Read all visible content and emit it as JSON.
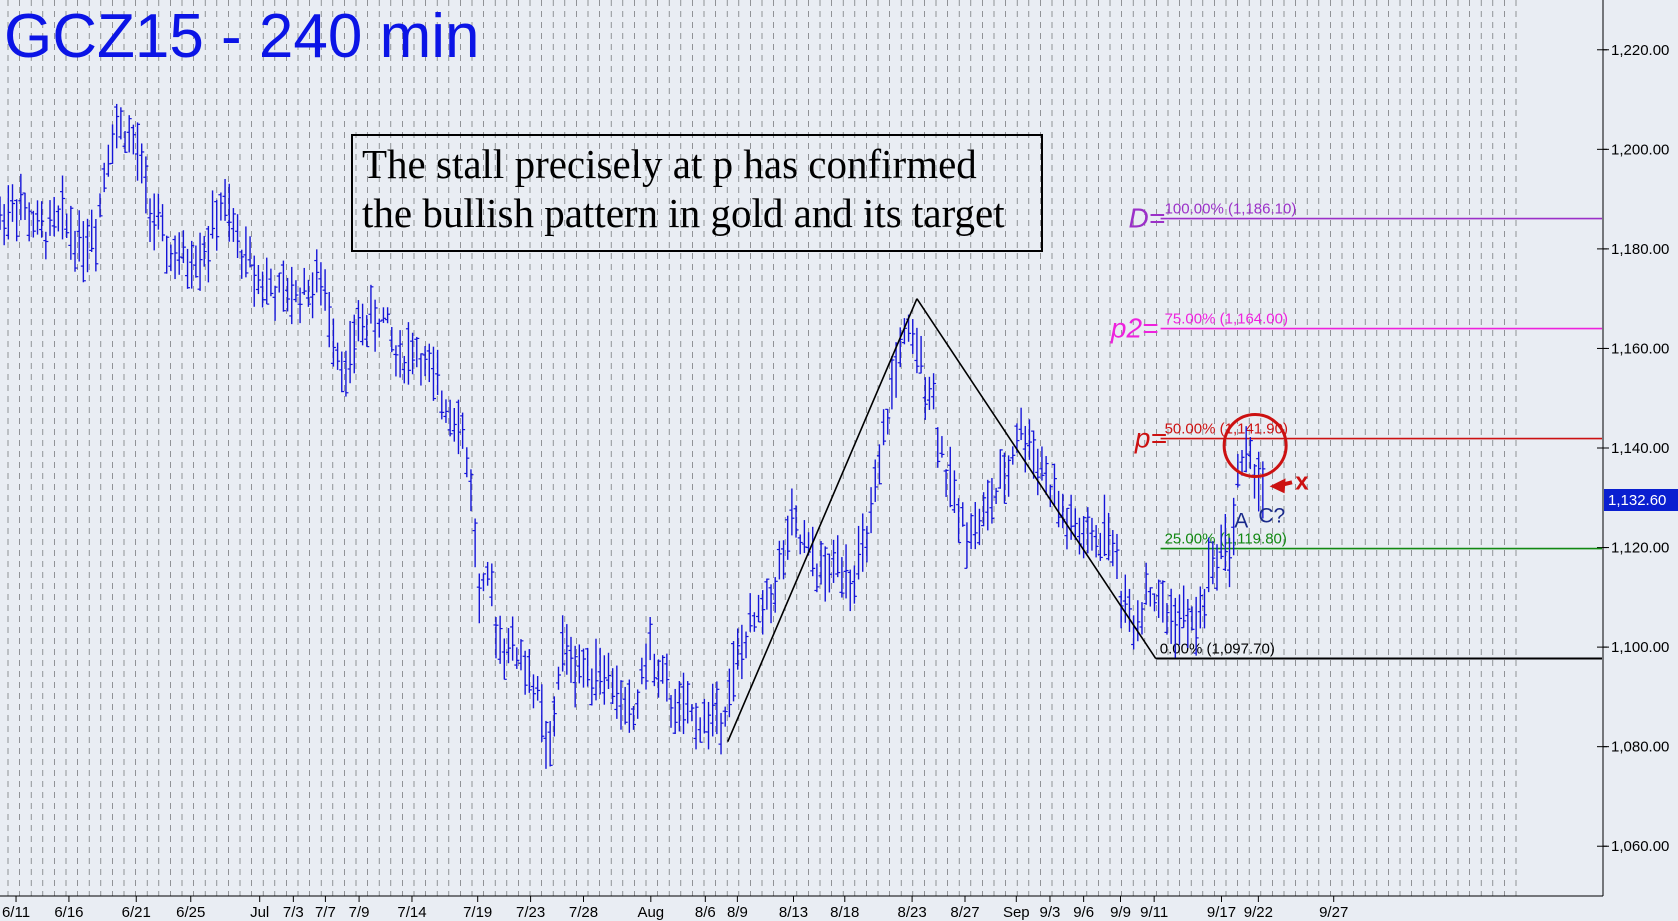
{
  "title": "GCZ15 - 240 min",
  "annotation": {
    "line1": "The stall precisely at p has confirmed",
    "line2": "the bullish pattern in gold and its target"
  },
  "current_price": "1,132.60",
  "colors": {
    "background": "#e9edf3",
    "bars": "#1515d8",
    "title": "#0b14e6",
    "D": "#9b30c8",
    "p2": "#ee22dd",
    "p": "#cc1111",
    "fib25": "#118811",
    "fib0": "#000000",
    "price_box": "#0a1fd0"
  },
  "chart_data": {
    "type": "ohlc",
    "title": "GCZ15 - 240 min",
    "ylim": [
      1050,
      1230
    ],
    "yticks": [
      {
        "value": 1060,
        "label": "1,060.00"
      },
      {
        "value": 1080,
        "label": "1,080.00"
      },
      {
        "value": 1100,
        "label": "1,100.00"
      },
      {
        "value": 1120,
        "label": "1,120.00"
      },
      {
        "value": 1140,
        "label": "1,140.00"
      },
      {
        "value": 1160,
        "label": "1,160.00"
      },
      {
        "value": 1180,
        "label": "1,180.00"
      },
      {
        "value": 1200,
        "label": "1,200.00"
      },
      {
        "value": 1220,
        "label": "1,220.00"
      }
    ],
    "xlim": [
      0,
      100
    ],
    "xticks": [
      {
        "x": 1,
        "label": "6/11"
      },
      {
        "x": 4.3,
        "label": "6/16"
      },
      {
        "x": 8.5,
        "label": "6/21"
      },
      {
        "x": 11.9,
        "label": "6/25"
      },
      {
        "x": 16.2,
        "label": "Jul"
      },
      {
        "x": 18.3,
        "label": "7/3"
      },
      {
        "x": 20.3,
        "label": "7/7"
      },
      {
        "x": 22.4,
        "label": "7/9"
      },
      {
        "x": 25.7,
        "label": "7/14"
      },
      {
        "x": 29.8,
        "label": "7/19"
      },
      {
        "x": 33.1,
        "label": "7/23"
      },
      {
        "x": 36.4,
        "label": "7/28"
      },
      {
        "x": 40.6,
        "label": "Aug"
      },
      {
        "x": 44.0,
        "label": "8/6"
      },
      {
        "x": 46.0,
        "label": "8/9"
      },
      {
        "x": 49.5,
        "label": "8/13"
      },
      {
        "x": 52.7,
        "label": "8/18"
      },
      {
        "x": 56.9,
        "label": "8/23"
      },
      {
        "x": 60.2,
        "label": "8/27"
      },
      {
        "x": 63.4,
        "label": "Sep"
      },
      {
        "x": 65.5,
        "label": "9/3"
      },
      {
        "x": 67.6,
        "label": "9/6"
      },
      {
        "x": 69.9,
        "label": "9/9"
      },
      {
        "x": 72.0,
        "label": "9/11"
      },
      {
        "x": 76.2,
        "label": "9/17"
      },
      {
        "x": 78.5,
        "label": "9/22"
      },
      {
        "x": 83.2,
        "label": "9/27"
      }
    ],
    "series_path": [
      [
        0,
        1186
      ],
      [
        1,
        1190
      ],
      [
        2.5,
        1183
      ],
      [
        4,
        1186
      ],
      [
        5,
        1181
      ],
      [
        6,
        1184
      ],
      [
        6.8,
        1202
      ],
      [
        7.6,
        1205
      ],
      [
        8.5,
        1200
      ],
      [
        9.4,
        1188
      ],
      [
        10.3,
        1180
      ],
      [
        11.5,
        1177
      ],
      [
        13,
        1181
      ],
      [
        13.8,
        1189
      ],
      [
        15,
        1180
      ],
      [
        16.5,
        1173
      ],
      [
        17.8,
        1170
      ],
      [
        19,
        1172
      ],
      [
        20,
        1173
      ],
      [
        20.8,
        1164
      ],
      [
        21.6,
        1154
      ],
      [
        22.4,
        1165
      ],
      [
        24,
        1166
      ],
      [
        24.8,
        1158
      ],
      [
        26,
        1160
      ],
      [
        27.5,
        1150
      ],
      [
        28.6,
        1147
      ],
      [
        29.4,
        1132
      ],
      [
        29.9,
        1110
      ],
      [
        30.5,
        1112
      ],
      [
        31.2,
        1102
      ],
      [
        32.5,
        1098
      ],
      [
        33.4,
        1092
      ],
      [
        34.3,
        1077
      ],
      [
        35,
        1100
      ],
      [
        36,
        1096
      ],
      [
        37.5,
        1096
      ],
      [
        38.6,
        1090
      ],
      [
        39.5,
        1085
      ],
      [
        40.4,
        1100
      ],
      [
        41,
        1095
      ],
      [
        42,
        1088
      ],
      [
        43,
        1086
      ],
      [
        44,
        1085
      ],
      [
        45.2,
        1088
      ],
      [
        46.3,
        1100
      ],
      [
        47.5,
        1107
      ],
      [
        48.5,
        1114
      ],
      [
        49.4,
        1124
      ],
      [
        50.5,
        1118
      ],
      [
        51.5,
        1114
      ],
      [
        52.5,
        1118
      ],
      [
        53.2,
        1114
      ],
      [
        54,
        1120
      ],
      [
        54.8,
        1133
      ],
      [
        55.5,
        1150
      ],
      [
        56.3,
        1163
      ],
      [
        57.3,
        1158
      ],
      [
        58.1,
        1152
      ],
      [
        59,
        1135
      ],
      [
        60,
        1125
      ],
      [
        61,
        1124
      ],
      [
        62,
        1130
      ],
      [
        62.8,
        1134
      ],
      [
        63.5,
        1144
      ],
      [
        64.5,
        1140
      ],
      [
        65.4,
        1133
      ],
      [
        66.3,
        1126
      ],
      [
        67.4,
        1122
      ],
      [
        68.2,
        1121
      ],
      [
        69.2,
        1124
      ],
      [
        70,
        1110
      ],
      [
        70.8,
        1105
      ],
      [
        71.6,
        1112
      ],
      [
        72.6,
        1107
      ],
      [
        73.6,
        1106
      ],
      [
        74.6,
        1104
      ],
      [
        75.4,
        1114
      ],
      [
        76.2,
        1121
      ],
      [
        76.8,
        1119
      ],
      [
        77.2,
        1134
      ],
      [
        77.7,
        1138
      ],
      [
        78.3,
        1136
      ],
      [
        78.8,
        1132.6
      ]
    ],
    "pattern_lines": [
      {
        "from": [
          45.4,
          1081
        ],
        "to": [
          57.2,
          1170
        ]
      },
      {
        "from": [
          57.2,
          1170
        ],
        "to": [
          72.1,
          1097.7
        ]
      }
    ],
    "fib_levels": [
      {
        "name": "D",
        "tag": "D=",
        "label": "100.00% (1,186.10)",
        "value": 1186.1
      },
      {
        "name": "p2",
        "tag": "p2=",
        "label": "75.00% (1,164.00)",
        "value": 1164.0
      },
      {
        "name": "p",
        "tag": "p=",
        "label": "50.00% (1,141.90)",
        "value": 1141.9
      },
      {
        "name": "fib25",
        "tag": "",
        "label": "25.00% (1,119.80)",
        "value": 1119.8
      },
      {
        "name": "fib0",
        "tag": "",
        "label": "0.00% (1,097.70)",
        "value": 1097.7
      }
    ],
    "wave_labels": [
      {
        "text": "A",
        "x": 77.0,
        "y": 1124
      },
      {
        "text": "C?",
        "x": 78.5,
        "y": 1125
      }
    ],
    "marker_label": "x",
    "circle_at": {
      "x": 78.3,
      "y": 1140.5
    }
  }
}
